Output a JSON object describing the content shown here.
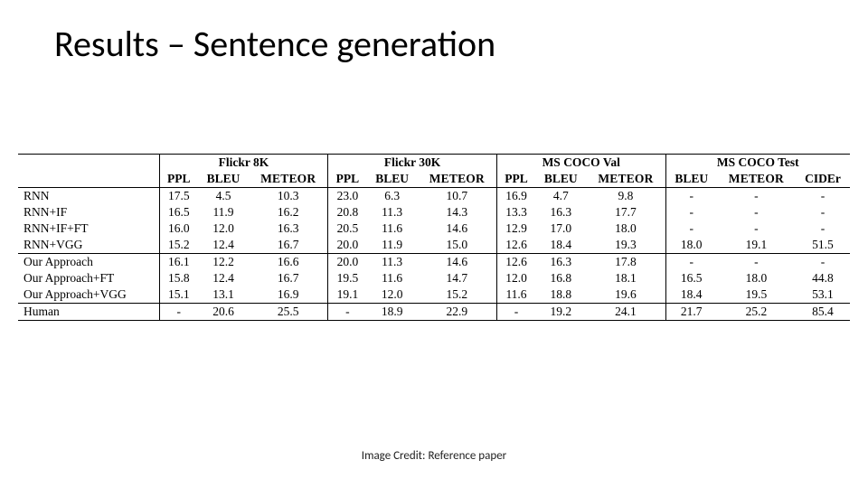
{
  "title": "Results – Sentence generation",
  "footer": "Image Credit: Reference paper",
  "table": {
    "type": "table",
    "background_color": "#ffffff",
    "text_color": "#000000",
    "border_color": "#000000",
    "fontsize": 13.5,
    "header_bold": true,
    "group_headers": [
      "",
      "Flickr 8K",
      "Flickr 30K",
      "MS COCO Val",
      "MS COCO Test"
    ],
    "group_spans": [
      1,
      3,
      3,
      3,
      3
    ],
    "columns": [
      "",
      "PPL",
      "BLEU",
      "METEOR",
      "PPL",
      "BLEU",
      "METEOR",
      "PPL",
      "BLEU",
      "METEOR",
      "BLEU",
      "METEOR",
      "CIDEr"
    ],
    "row_labels": [
      "RNN",
      "RNN+IF",
      "RNN+IF+FT",
      "RNN+VGG",
      "Our Approach",
      "Our Approach+FT",
      "Our Approach+VGG",
      "Human"
    ],
    "rows": [
      [
        "17.5",
        "4.5",
        "10.3",
        "23.0",
        "6.3",
        "10.7",
        "16.9",
        "4.7",
        "9.8",
        "-",
        "-",
        "-"
      ],
      [
        "16.5",
        "11.9",
        "16.2",
        "20.8",
        "11.3",
        "14.3",
        "13.3",
        "16.3",
        "17.7",
        "-",
        "-",
        "-"
      ],
      [
        "16.0",
        "12.0",
        "16.3",
        "20.5",
        "11.6",
        "14.6",
        "12.9",
        "17.0",
        "18.0",
        "-",
        "-",
        "-"
      ],
      [
        "15.2",
        "12.4",
        "16.7",
        "20.0",
        "11.9",
        "15.0",
        "12.6",
        "18.4",
        "19.3",
        "18.0",
        "19.1",
        "51.5"
      ],
      [
        "16.1",
        "12.2",
        "16.6",
        "20.0",
        "11.3",
        "14.6",
        "12.6",
        "16.3",
        "17.8",
        "-",
        "-",
        "-"
      ],
      [
        "15.8",
        "12.4",
        "16.7",
        "19.5",
        "11.6",
        "14.7",
        "12.0",
        "16.8",
        "18.1",
        "16.5",
        "18.0",
        "44.8"
      ],
      [
        "15.1",
        "13.1",
        "16.9",
        "19.1",
        "12.0",
        "15.2",
        "11.6",
        "18.8",
        "19.6",
        "18.4",
        "19.5",
        "53.1"
      ],
      [
        "-",
        "20.6",
        "25.5",
        "-",
        "18.9",
        "22.9",
        "-",
        "19.2",
        "24.1",
        "21.7",
        "25.2",
        "85.4"
      ]
    ],
    "section_breaks_after": [
      3,
      6
    ]
  }
}
